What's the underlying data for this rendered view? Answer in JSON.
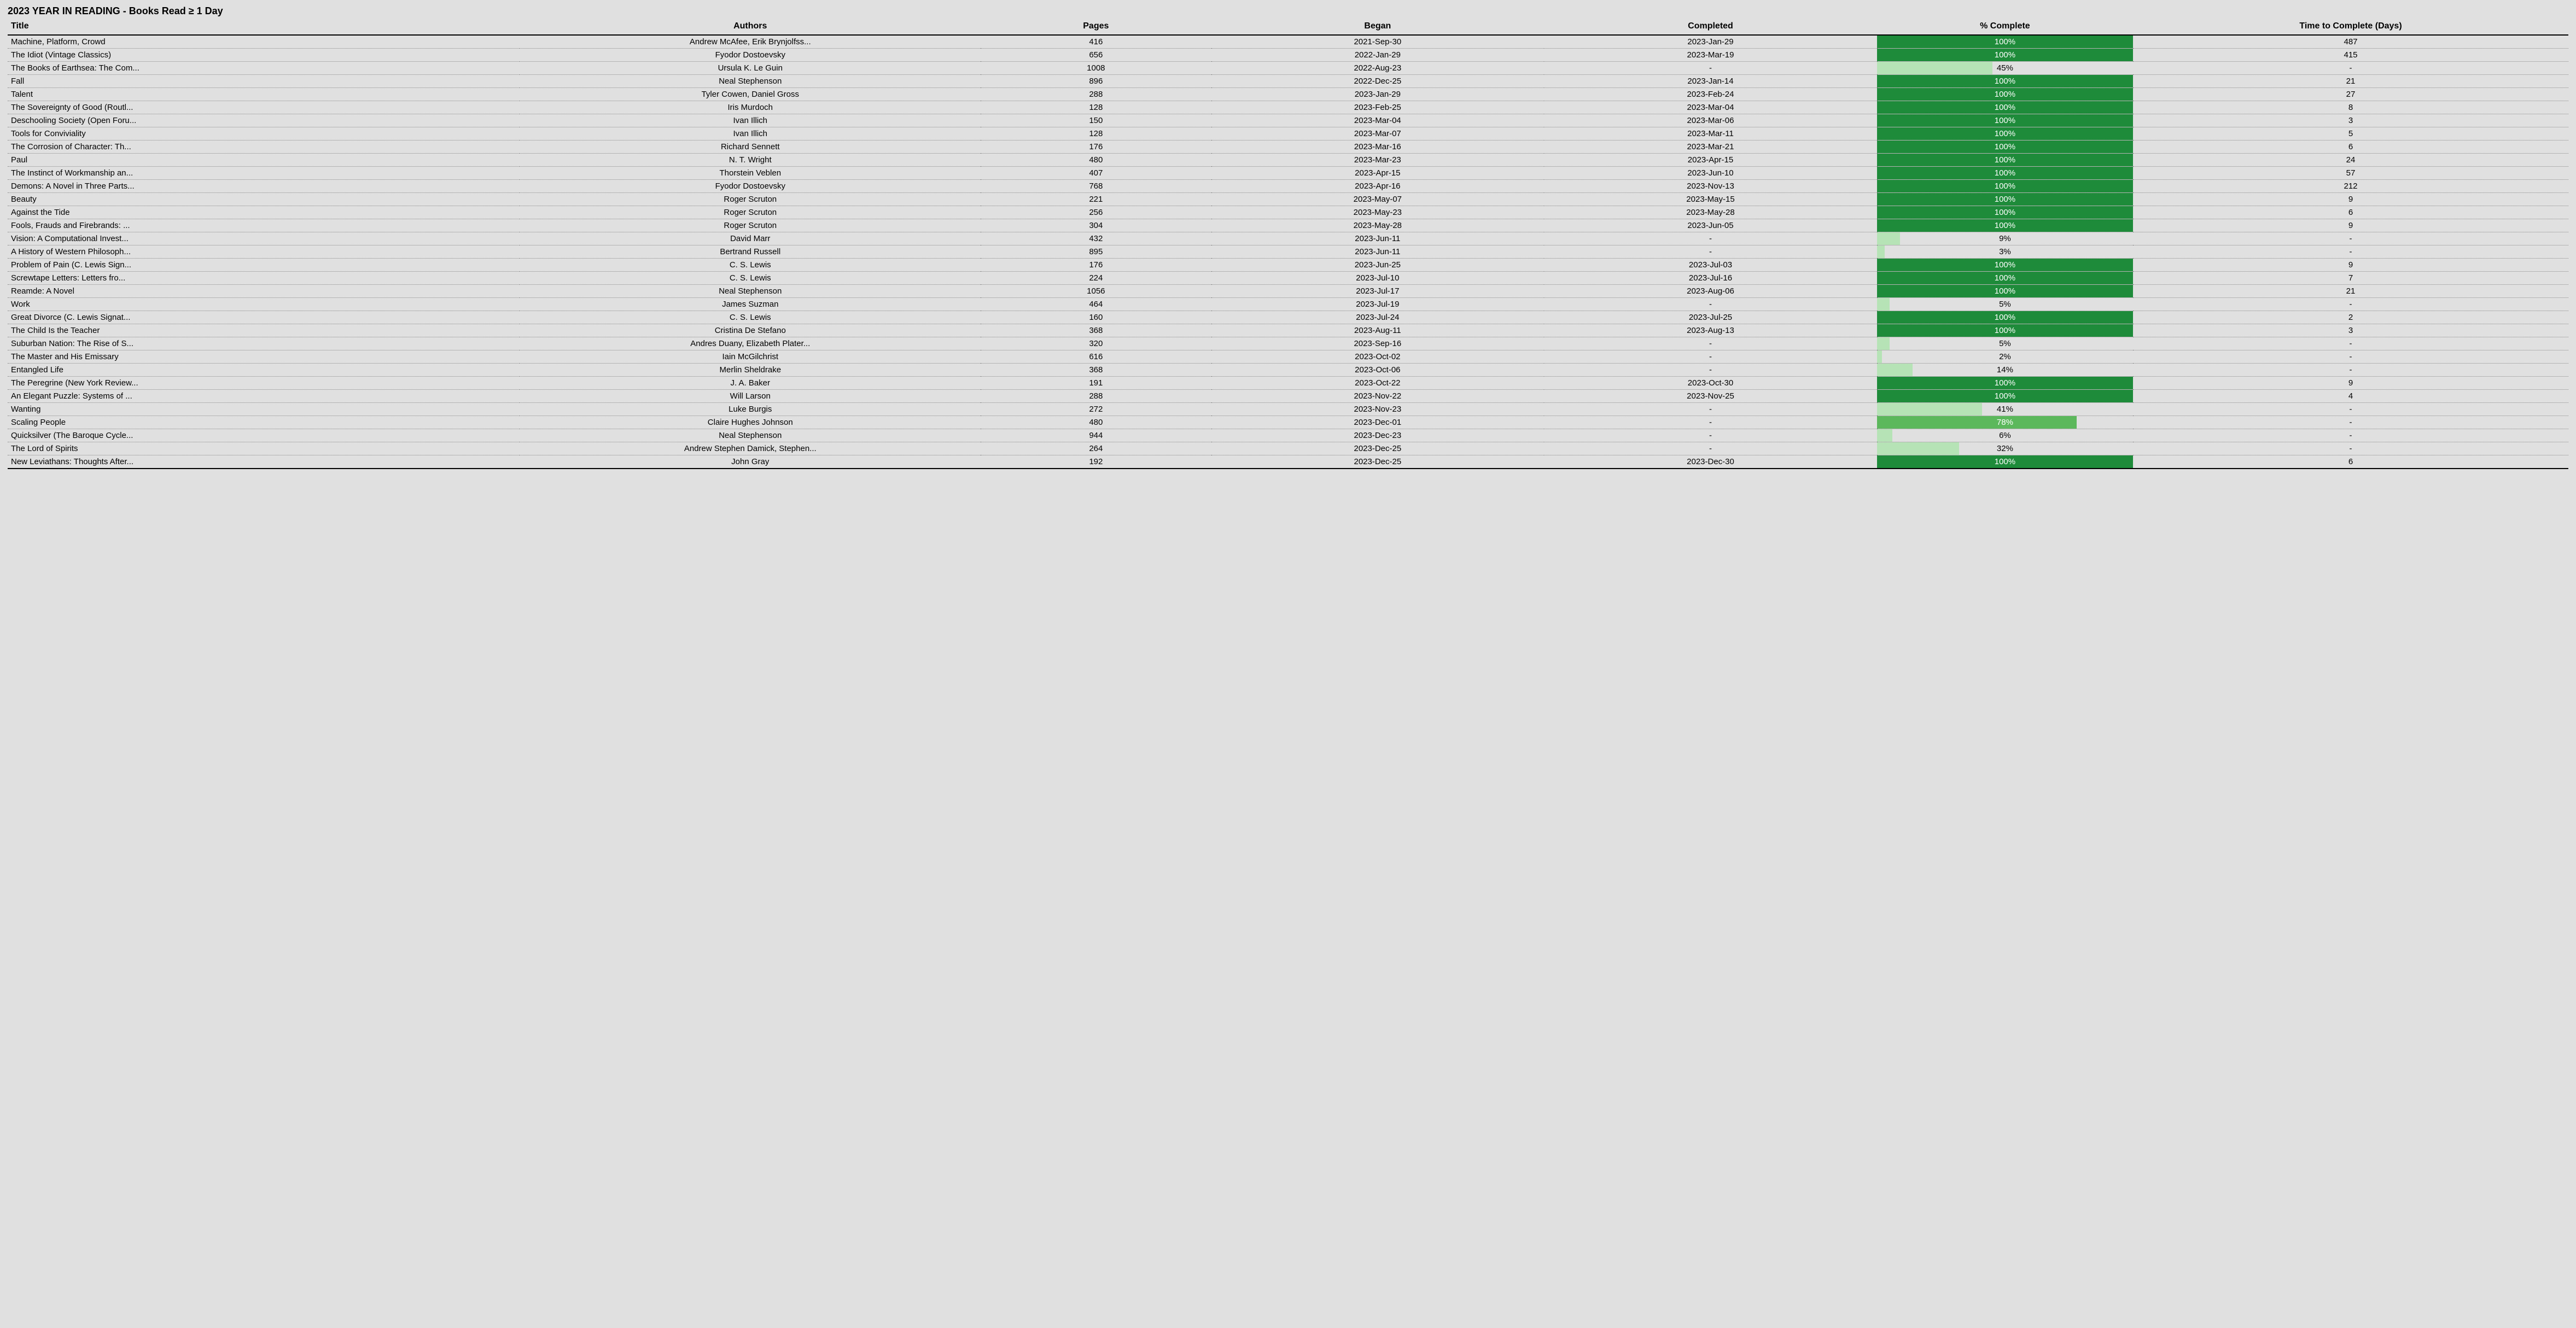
{
  "page_title": "2023 YEAR IN READING - Books Read ≥ 1 Day",
  "colors": {
    "background": "#e0e0e0",
    "bar_light": "#b6e3b6",
    "bar_mid": "#5cb85c",
    "bar_full": "#1e8b3a",
    "header_rule": "#000000",
    "row_rule": "#888888"
  },
  "columns": [
    {
      "key": "title",
      "label": "Title",
      "align": "left"
    },
    {
      "key": "authors",
      "label": "Authors",
      "align": "center"
    },
    {
      "key": "pages",
      "label": "Pages",
      "align": "center"
    },
    {
      "key": "began",
      "label": "Began",
      "align": "center"
    },
    {
      "key": "completed",
      "label": "Completed",
      "align": "center"
    },
    {
      "key": "pct",
      "label": "% Complete",
      "align": "center"
    },
    {
      "key": "days",
      "label": "Time to Complete (Days)",
      "align": "center"
    }
  ],
  "rows": [
    {
      "title": "Machine, Platform, Crowd",
      "authors": "Andrew McAfee, Erik Brynjolfss...",
      "pages": "416",
      "began": "2021-Sep-30",
      "completed": "2023-Jan-29",
      "pct": 100,
      "days": "487"
    },
    {
      "title": "The Idiot (Vintage Classics)",
      "authors": "Fyodor Dostoevsky",
      "pages": "656",
      "began": "2022-Jan-29",
      "completed": "2023-Mar-19",
      "pct": 100,
      "days": "415"
    },
    {
      "title": "The Books of Earthsea: The Com...",
      "authors": "Ursula  K. Le Guin",
      "pages": "1008",
      "began": "2022-Aug-23",
      "completed": "-",
      "pct": 45,
      "days": "-"
    },
    {
      "title": "Fall",
      "authors": "Neal Stephenson",
      "pages": "896",
      "began": "2022-Dec-25",
      "completed": "2023-Jan-14",
      "pct": 100,
      "days": "21"
    },
    {
      "title": "Talent",
      "authors": "Tyler Cowen, Daniel Gross",
      "pages": "288",
      "began": "2023-Jan-29",
      "completed": "2023-Feb-24",
      "pct": 100,
      "days": "27"
    },
    {
      "title": "The Sovereignty of Good (Routl...",
      "authors": "Iris Murdoch",
      "pages": "128",
      "began": "2023-Feb-25",
      "completed": "2023-Mar-04",
      "pct": 100,
      "days": "8"
    },
    {
      "title": "Deschooling Society (Open Foru...",
      "authors": "Ivan Illich",
      "pages": "150",
      "began": "2023-Mar-04",
      "completed": "2023-Mar-06",
      "pct": 100,
      "days": "3"
    },
    {
      "title": "Tools for Conviviality",
      "authors": "Ivan Illich",
      "pages": "128",
      "began": "2023-Mar-07",
      "completed": "2023-Mar-11",
      "pct": 100,
      "days": "5"
    },
    {
      "title": "The Corrosion of Character: Th...",
      "authors": "Richard Sennett",
      "pages": "176",
      "began": "2023-Mar-16",
      "completed": "2023-Mar-21",
      "pct": 100,
      "days": "6"
    },
    {
      "title": "Paul",
      "authors": "N. T. Wright",
      "pages": "480",
      "began": "2023-Mar-23",
      "completed": "2023-Apr-15",
      "pct": 100,
      "days": "24"
    },
    {
      "title": "The Instinct of Workmanship an...",
      "authors": "Thorstein Veblen",
      "pages": "407",
      "began": "2023-Apr-15",
      "completed": "2023-Jun-10",
      "pct": 100,
      "days": "57"
    },
    {
      "title": "Demons: A Novel in Three Parts...",
      "authors": "Fyodor Dostoevsky",
      "pages": "768",
      "began": "2023-Apr-16",
      "completed": "2023-Nov-13",
      "pct": 100,
      "days": "212"
    },
    {
      "title": "Beauty",
      "authors": "Roger Scruton",
      "pages": "221",
      "began": "2023-May-07",
      "completed": "2023-May-15",
      "pct": 100,
      "days": "9"
    },
    {
      "title": "Against the Tide",
      "authors": "Roger Scruton",
      "pages": "256",
      "began": "2023-May-23",
      "completed": "2023-May-28",
      "pct": 100,
      "days": "6"
    },
    {
      "title": "Fools, Frauds and Firebrands: ...",
      "authors": "Roger Scruton",
      "pages": "304",
      "began": "2023-May-28",
      "completed": "2023-Jun-05",
      "pct": 100,
      "days": "9"
    },
    {
      "title": "Vision: A Computational Invest...",
      "authors": "David Marr",
      "pages": "432",
      "began": "2023-Jun-11",
      "completed": "-",
      "pct": 9,
      "days": "-"
    },
    {
      "title": "A History of Western Philosoph...",
      "authors": "Bertrand Russell",
      "pages": "895",
      "began": "2023-Jun-11",
      "completed": "-",
      "pct": 3,
      "days": "-"
    },
    {
      "title": "Problem of Pain (C. Lewis Sign...",
      "authors": "C. S. Lewis",
      "pages": "176",
      "began": "2023-Jun-25",
      "completed": "2023-Jul-03",
      "pct": 100,
      "days": "9"
    },
    {
      "title": "Screwtape Letters: Letters fro...",
      "authors": "C. S. Lewis",
      "pages": "224",
      "began": "2023-Jul-10",
      "completed": "2023-Jul-16",
      "pct": 100,
      "days": "7"
    },
    {
      "title": "Reamde: A Novel",
      "authors": "Neal Stephenson",
      "pages": "1056",
      "began": "2023-Jul-17",
      "completed": "2023-Aug-06",
      "pct": 100,
      "days": "21"
    },
    {
      "title": "Work",
      "authors": "James Suzman",
      "pages": "464",
      "began": "2023-Jul-19",
      "completed": "-",
      "pct": 5,
      "days": "-"
    },
    {
      "title": "Great Divorce (C. Lewis Signat...",
      "authors": "C. S. Lewis",
      "pages": "160",
      "began": "2023-Jul-24",
      "completed": "2023-Jul-25",
      "pct": 100,
      "days": "2"
    },
    {
      "title": "The Child Is the Teacher",
      "authors": "Cristina De Stefano",
      "pages": "368",
      "began": "2023-Aug-11",
      "completed": "2023-Aug-13",
      "pct": 100,
      "days": "3"
    },
    {
      "title": "Suburban Nation: The Rise of S...",
      "authors": "Andres Duany, Elizabeth Plater...",
      "pages": "320",
      "began": "2023-Sep-16",
      "completed": "-",
      "pct": 5,
      "days": "-"
    },
    {
      "title": "The Master and His Emissary",
      "authors": "Iain McGilchrist",
      "pages": "616",
      "began": "2023-Oct-02",
      "completed": "-",
      "pct": 2,
      "days": "-"
    },
    {
      "title": "Entangled Life",
      "authors": "Merlin Sheldrake",
      "pages": "368",
      "began": "2023-Oct-06",
      "completed": "-",
      "pct": 14,
      "days": "-"
    },
    {
      "title": "The Peregrine (New York Review...",
      "authors": "J. A. Baker",
      "pages": "191",
      "began": "2023-Oct-22",
      "completed": "2023-Oct-30",
      "pct": 100,
      "days": "9"
    },
    {
      "title": "An Elegant Puzzle: Systems of ...",
      "authors": "Will Larson",
      "pages": "288",
      "began": "2023-Nov-22",
      "completed": "2023-Nov-25",
      "pct": 100,
      "days": "4"
    },
    {
      "title": "Wanting",
      "authors": "Luke Burgis",
      "pages": "272",
      "began": "2023-Nov-23",
      "completed": "-",
      "pct": 41,
      "days": "-"
    },
    {
      "title": "Scaling People",
      "authors": "Claire Hughes Johnson",
      "pages": "480",
      "began": "2023-Dec-01",
      "completed": "-",
      "pct": 78,
      "days": "-"
    },
    {
      "title": "Quicksilver (The Baroque Cycle...",
      "authors": "Neal Stephenson",
      "pages": "944",
      "began": "2023-Dec-23",
      "completed": "-",
      "pct": 6,
      "days": "-"
    },
    {
      "title": "The Lord of Spirits",
      "authors": "Andrew Stephen Damick, Stephen...",
      "pages": "264",
      "began": "2023-Dec-25",
      "completed": "-",
      "pct": 32,
      "days": "-"
    },
    {
      "title": "New Leviathans: Thoughts After...",
      "authors": "John Gray",
      "pages": "192",
      "began": "2023-Dec-25",
      "completed": "2023-Dec-30",
      "pct": 100,
      "days": "6"
    }
  ]
}
